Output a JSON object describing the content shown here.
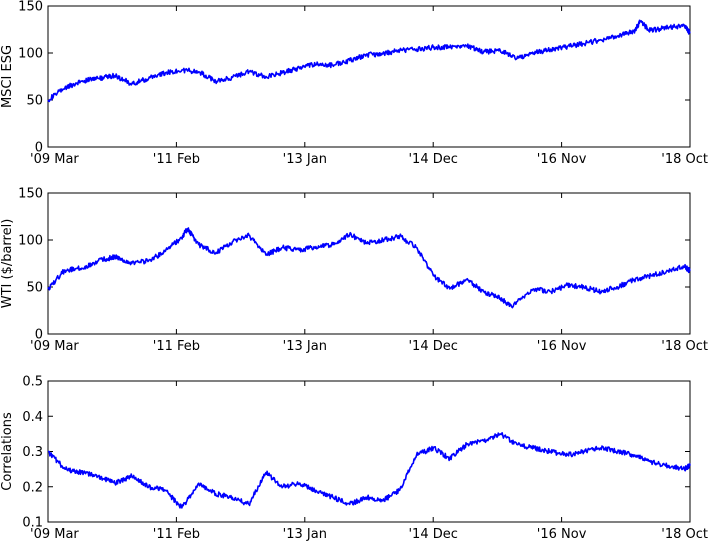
{
  "chart_data": [
    {
      "type": "line",
      "ylabel": "MSCI ESG",
      "ylim": [
        0,
        150
      ],
      "yticks": [
        0,
        50,
        100,
        150
      ],
      "xticks": [
        "'09 Mar",
        "'11 Feb",
        "'13 Jan",
        "'14 Dec",
        "'16 Nov",
        "'18 Oct"
      ],
      "grid": false,
      "color": "#0000ff",
      "series": [
        {
          "x": [
            "2009-03",
            "2009-06",
            "2009-09",
            "2009-12",
            "2010-03",
            "2010-06",
            "2010-09",
            "2010-12",
            "2011-03",
            "2011-06",
            "2011-09",
            "2011-12",
            "2012-03",
            "2012-06",
            "2012-09",
            "2012-12",
            "2013-03",
            "2013-06",
            "2013-09",
            "2013-12",
            "2014-03",
            "2014-06",
            "2014-09",
            "2014-12",
            "2015-03",
            "2015-06",
            "2015-09",
            "2015-12",
            "2016-03",
            "2016-06",
            "2016-09",
            "2016-12",
            "2017-03",
            "2017-06",
            "2017-09",
            "2017-12",
            "2018-01",
            "2018-03",
            "2018-06",
            "2018-09",
            "2018-10"
          ],
          "values": [
            50,
            63,
            70,
            73,
            76,
            67,
            73,
            79,
            82,
            80,
            70,
            74,
            80,
            75,
            79,
            84,
            88,
            87,
            92,
            98,
            99,
            103,
            104,
            106,
            106,
            108,
            101,
            103,
            94,
            100,
            104,
            107,
            110,
            114,
            118,
            123,
            133,
            124,
            127,
            129,
            121
          ]
        }
      ]
    },
    {
      "type": "line",
      "ylabel": "WTI ($/barrel)",
      "ylim": [
        0,
        150
      ],
      "yticks": [
        0,
        50,
        100,
        150
      ],
      "xticks": [
        "'09 Mar",
        "'11 Feb",
        "'13 Jan",
        "'14 Dec",
        "'16 Nov",
        "'18 Oct"
      ],
      "grid": false,
      "color": "#0000ff",
      "series": [
        {
          "x": [
            "2009-03",
            "2009-06",
            "2009-09",
            "2009-12",
            "2010-03",
            "2010-06",
            "2010-09",
            "2010-12",
            "2011-03",
            "2011-04",
            "2011-06",
            "2011-09",
            "2011-12",
            "2012-03",
            "2012-06",
            "2012-09",
            "2012-12",
            "2013-03",
            "2013-06",
            "2013-09",
            "2013-12",
            "2014-03",
            "2014-06",
            "2014-09",
            "2014-12",
            "2015-03",
            "2015-06",
            "2015-09",
            "2015-12",
            "2016-02",
            "2016-06",
            "2016-09",
            "2016-12",
            "2017-03",
            "2017-06",
            "2017-09",
            "2017-12",
            "2018-03",
            "2018-06",
            "2018-09",
            "2018-10"
          ],
          "values": [
            48,
            68,
            70,
            78,
            82,
            75,
            78,
            88,
            103,
            112,
            95,
            86,
            98,
            105,
            84,
            92,
            89,
            93,
            95,
            106,
            97,
            100,
            104,
            92,
            62,
            48,
            58,
            45,
            38,
            29,
            48,
            45,
            52,
            50,
            45,
            50,
            58,
            62,
            67,
            72,
            67
          ]
        }
      ]
    },
    {
      "type": "line",
      "ylabel": "Correlations",
      "ylim": [
        0.1,
        0.5
      ],
      "yticks": [
        0.1,
        0.2,
        0.3,
        0.4,
        0.5
      ],
      "xticks": [
        "'09 Mar",
        "'11 Feb",
        "'13 Jan",
        "'14 Dec",
        "'16 Nov",
        "'18 Oct"
      ],
      "grid": false,
      "color": "#0000ff",
      "series": [
        {
          "x": [
            "2009-03",
            "2009-06",
            "2009-09",
            "2009-12",
            "2010-03",
            "2010-06",
            "2010-09",
            "2010-12",
            "2011-03",
            "2011-06",
            "2011-09",
            "2011-12",
            "2012-03",
            "2012-06",
            "2012-09",
            "2012-12",
            "2013-03",
            "2013-06",
            "2013-09",
            "2013-12",
            "2014-03",
            "2014-06",
            "2014-09",
            "2014-12",
            "2015-03",
            "2015-06",
            "2015-09",
            "2015-12",
            "2016-03",
            "2016-06",
            "2016-09",
            "2016-12",
            "2017-03",
            "2017-06",
            "2017-09",
            "2017-12",
            "2018-03",
            "2018-06",
            "2018-09",
            "2018-10"
          ],
          "values": [
            0.3,
            0.25,
            0.24,
            0.23,
            0.21,
            0.23,
            0.2,
            0.19,
            0.14,
            0.21,
            0.18,
            0.17,
            0.15,
            0.24,
            0.2,
            0.21,
            0.19,
            0.17,
            0.15,
            0.17,
            0.16,
            0.19,
            0.29,
            0.31,
            0.28,
            0.32,
            0.33,
            0.35,
            0.32,
            0.31,
            0.3,
            0.29,
            0.3,
            0.31,
            0.3,
            0.29,
            0.27,
            0.26,
            0.25,
            0.26
          ]
        }
      ]
    }
  ]
}
